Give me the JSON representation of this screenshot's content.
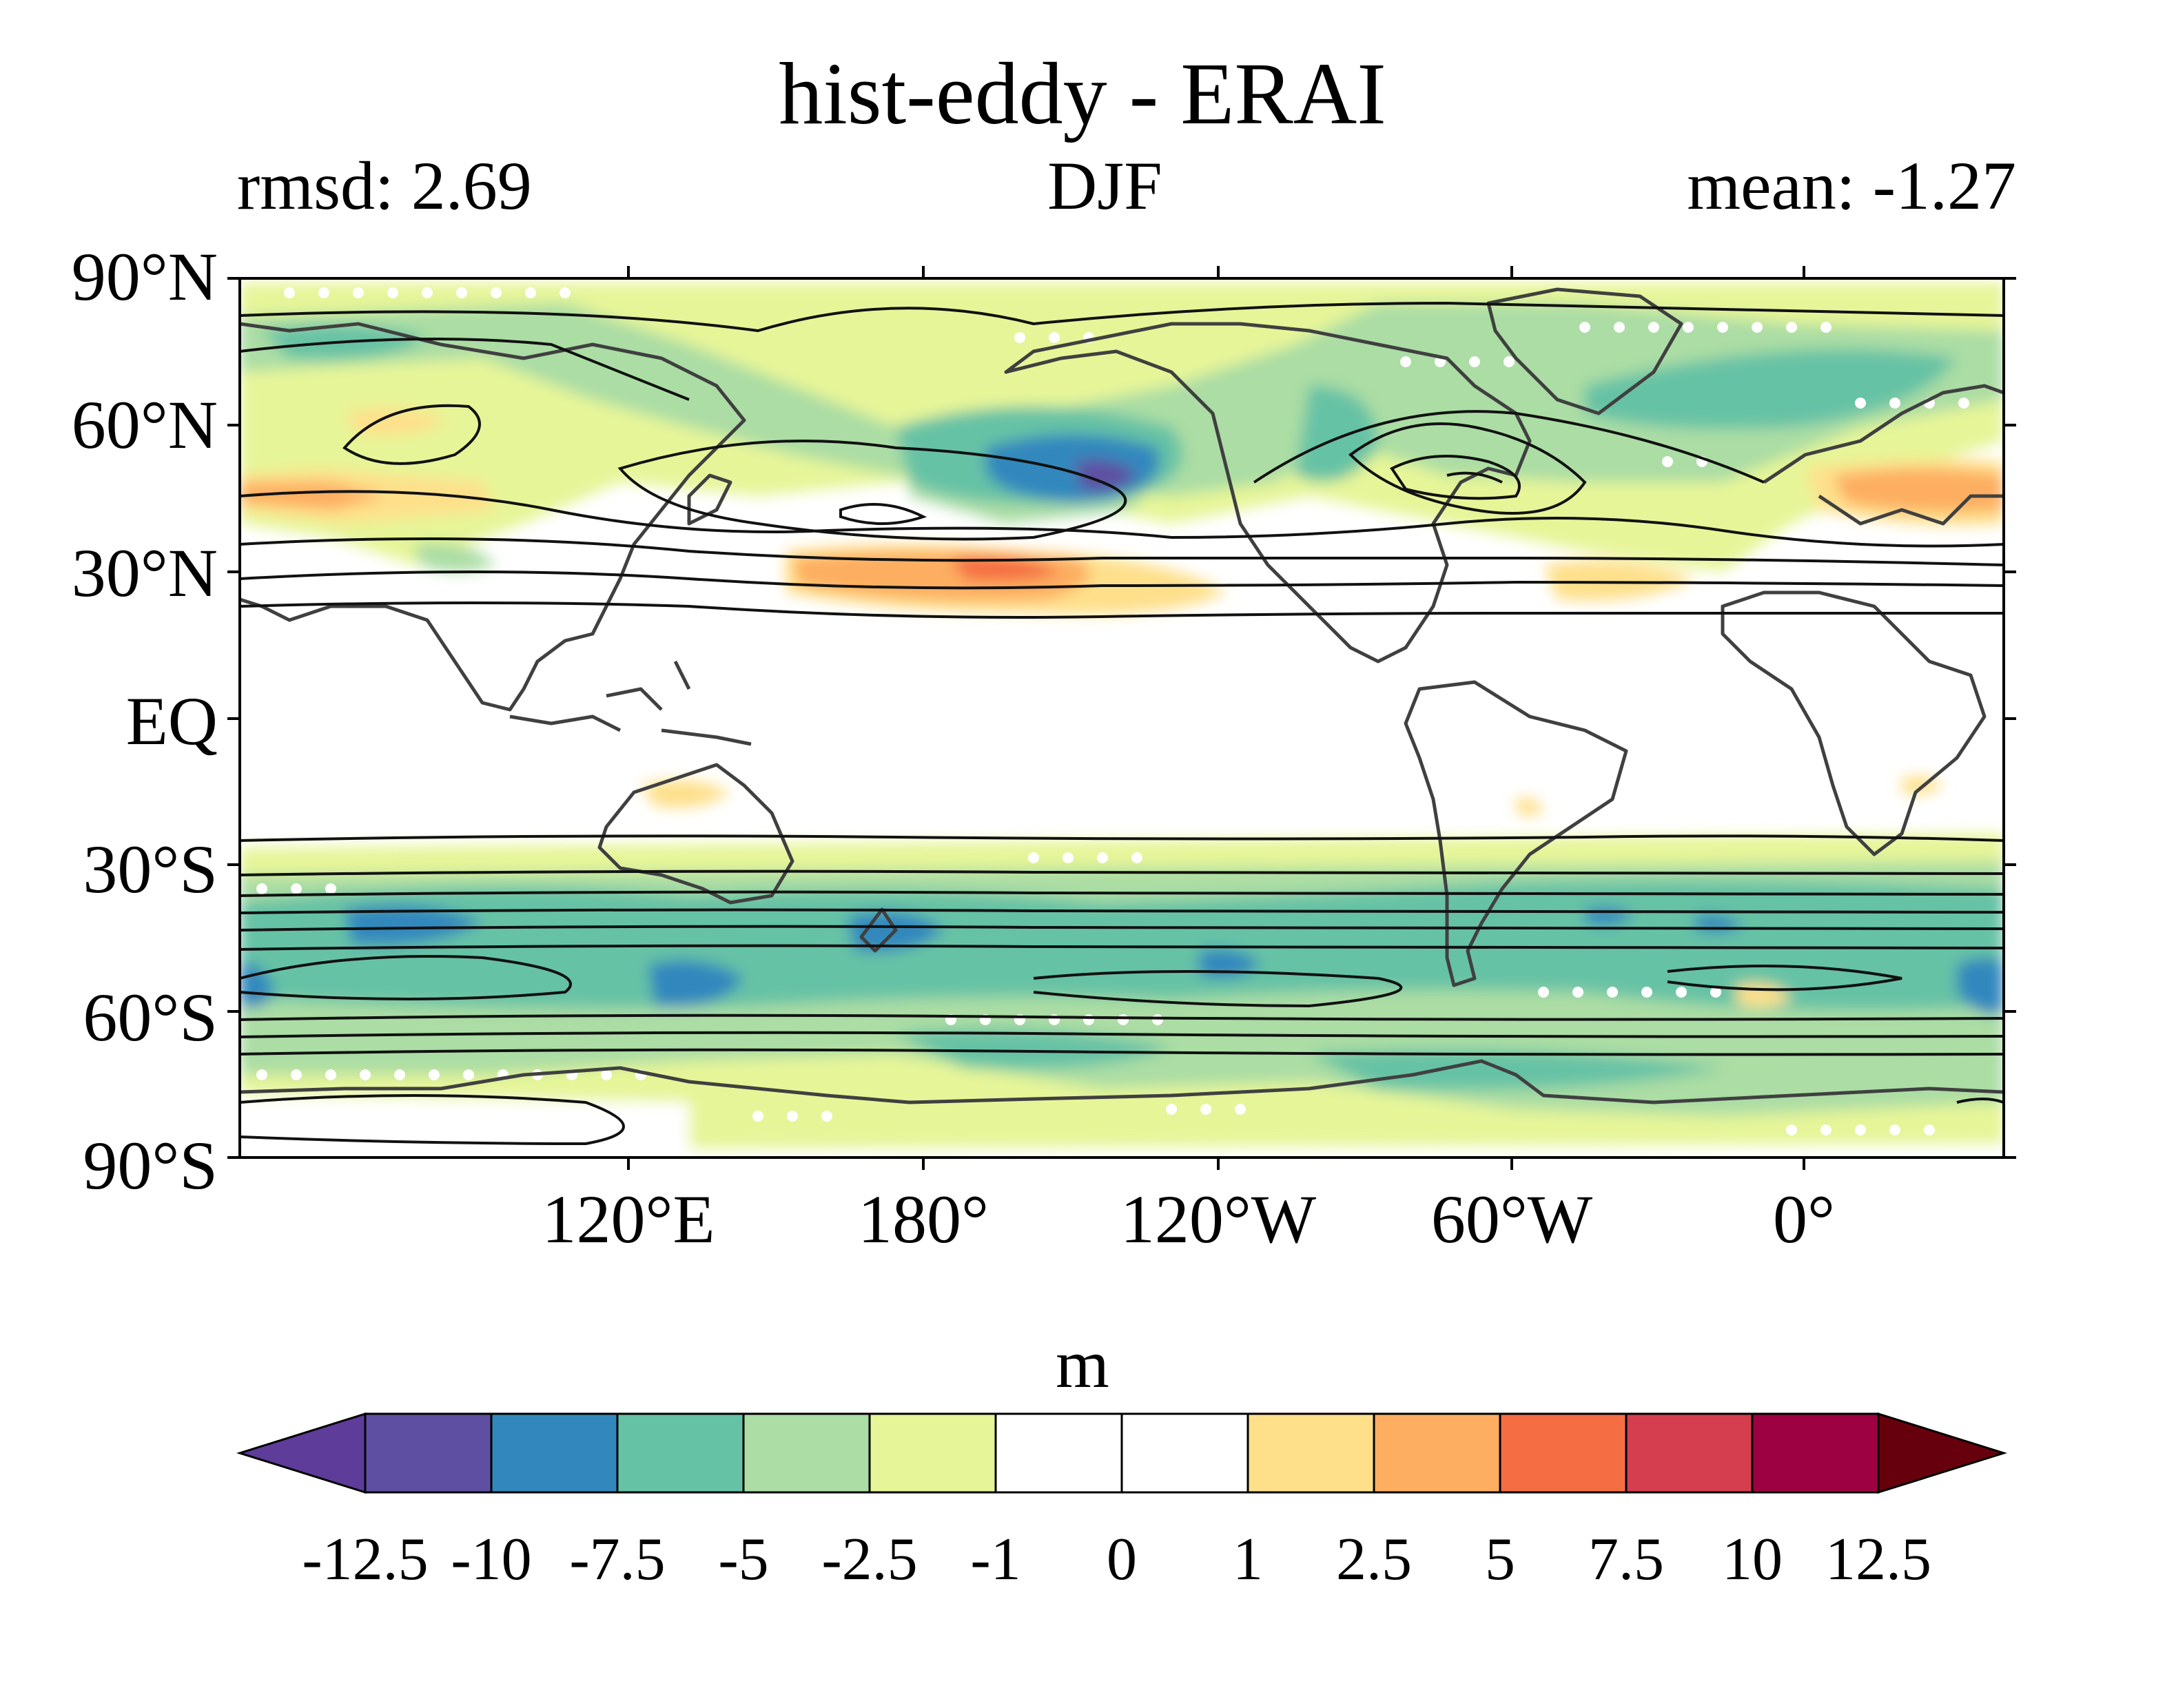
{
  "title": "hist-eddy - ERAI",
  "left_label": "rmsd: 2.69",
  "center_label": "DJF",
  "right_label": "mean: -1.27",
  "latitude_ticks": [
    "90°N",
    "60°N",
    "30°N",
    "EQ",
    "30°S",
    "60°S",
    "90°S"
  ],
  "longitude_ticks": [
    "120°E",
    "180°",
    "120°W",
    "60°W",
    "0°"
  ],
  "colorbar": {
    "unit": "m",
    "levels": [
      "-12.5",
      "-10",
      "-7.5",
      "-5",
      "-2.5",
      "-1",
      "0",
      "1",
      "2.5",
      "5",
      "7.5",
      "10",
      "12.5"
    ],
    "colors": [
      "#5e3c99",
      "#5e4fa2",
      "#3288bd",
      "#66c2a5",
      "#abdda4",
      "#e6f598",
      "#ffffff",
      "#ffffff",
      "#fee08b",
      "#fdae61",
      "#f46d43",
      "#d53e4f",
      "#9e0142",
      "#67000d"
    ]
  }
}
